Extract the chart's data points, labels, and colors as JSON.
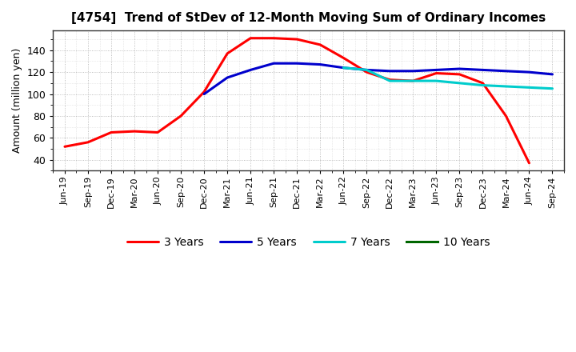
{
  "title": "[4754]  Trend of StDev of 12-Month Moving Sum of Ordinary Incomes",
  "ylabel": "Amount (million yen)",
  "background_color": "#ffffff",
  "plot_background": "#ffffff",
  "grid_color": "#999999",
  "x_labels": [
    "Jun-19",
    "Sep-19",
    "Dec-19",
    "Mar-20",
    "Jun-20",
    "Sep-20",
    "Dec-20",
    "Mar-21",
    "Jun-21",
    "Sep-21",
    "Dec-21",
    "Mar-22",
    "Jun-22",
    "Sep-22",
    "Dec-22",
    "Mar-23",
    "Jun-23",
    "Sep-23",
    "Dec-23",
    "Mar-24",
    "Jun-24",
    "Sep-24"
  ],
  "ylim": [
    30,
    158
  ],
  "yticks": [
    40,
    60,
    80,
    100,
    120,
    140
  ],
  "series_3y": {
    "color": "#ff0000",
    "label": "3 Years",
    "x": [
      0,
      1,
      2,
      3,
      4,
      5,
      6,
      7,
      8,
      9,
      10,
      11,
      12,
      13,
      14,
      15,
      16,
      17,
      18,
      19,
      20
    ],
    "y": [
      52,
      56,
      65,
      66,
      65,
      80,
      102,
      137,
      151,
      151,
      150,
      145,
      133,
      120,
      113,
      112,
      119,
      118,
      110,
      80,
      37
    ]
  },
  "series_5y": {
    "color": "#0000cc",
    "label": "5 Years",
    "x": [
      6,
      7,
      8,
      9,
      10,
      11,
      12,
      13,
      14,
      15,
      16,
      17,
      18,
      19,
      20,
      21
    ],
    "y": [
      100,
      115,
      122,
      128,
      128,
      127,
      124,
      122,
      121,
      121,
      122,
      123,
      122,
      121,
      120,
      118
    ]
  },
  "series_7y": {
    "color": "#00cccc",
    "label": "7 Years",
    "x": [
      12,
      13,
      14,
      15,
      16,
      17,
      18,
      19,
      20,
      21
    ],
    "y": [
      124,
      122,
      112,
      112,
      112,
      110,
      108,
      107,
      106,
      105
    ]
  },
  "series_10y": {
    "color": "#006600",
    "label": "10 Years",
    "x": [],
    "y": []
  },
  "linewidth": 2.2
}
